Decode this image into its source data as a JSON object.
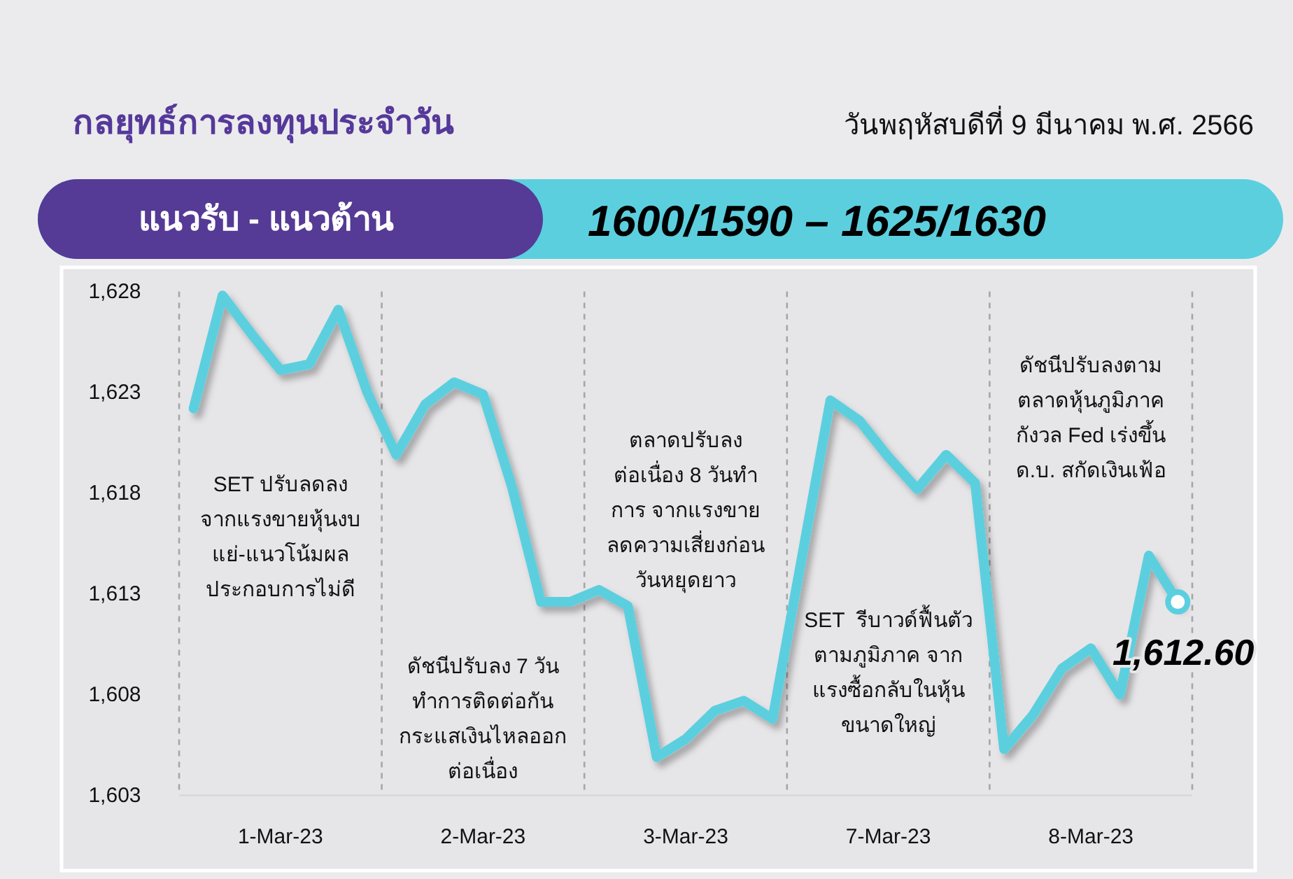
{
  "chart_data": {
    "type": "line",
    "title": "กลยุทธ์การลงทุนประจำวัน",
    "subtitle": "วันพฤหัสบดีที่ 9 มีนาคม พ.ศ. 2566",
    "categories": [
      null,
      null,
      null,
      "1-Mar-23",
      null,
      null,
      null,
      null,
      null,
      null,
      "2-Mar-23",
      null,
      null,
      null,
      null,
      null,
      null,
      "3-Mar-23",
      null,
      null,
      null,
      null,
      null,
      null,
      "7-Mar-23",
      null,
      null,
      null,
      null,
      null,
      null,
      "8-Mar-23",
      null,
      null,
      null
    ],
    "series": [
      {
        "color": "#5bcfdf",
        "values": [
          1622.2,
          1627.8,
          1625.9,
          1624.1,
          1624.4,
          1627.1,
          1623.0,
          1619.9,
          1622.4,
          1623.5,
          1622.9,
          1618.3,
          1612.6,
          1612.6,
          1613.2,
          1612.4,
          1604.9,
          1605.8,
          1607.2,
          1607.7,
          1606.8,
          1614.7,
          1622.6,
          1621.6,
          1619.8,
          1618.2,
          1619.9,
          1618.5,
          1605.3,
          1607.0,
          1609.3,
          1610.3,
          1608.0,
          1614.9,
          1612.6
        ],
        "value_labels": [
          null,
          null,
          null,
          null,
          null,
          null,
          null,
          null,
          null,
          null,
          null,
          null,
          null,
          null,
          null,
          null,
          null,
          null,
          null,
          null,
          null,
          null,
          null,
          null,
          null,
          null,
          null,
          null,
          null,
          null,
          null,
          null,
          null,
          null,
          "1,612.60"
        ]
      }
    ],
    "ylim": [
      1603,
      1628
    ],
    "yticks": [
      {
        "value": 1603,
        "label": "1,603"
      },
      {
        "value": 1608,
        "label": "1,608"
      },
      {
        "value": 1613,
        "label": "1,613"
      },
      {
        "value": 1618,
        "label": "1,618"
      },
      {
        "value": 1623,
        "label": "1,623"
      },
      {
        "value": 1628,
        "label": "1,628"
      }
    ],
    "grid": "x",
    "annotations": [
      "แนวรับ - แนวต้าน",
      "1600/1590 – 1625/1630",
      "SET ปรับลดลง\nจากแรงขายหุ้นงบ\nแย่-แนวโน้มผล\nประกอบการไม่ดี",
      "ดัชนีปรับลง 7 วัน\nทำการติดต่อกัน\nกระแสเงินไหลออก\nต่อเนื่อง",
      "ตลาดปรับลง\nต่อเนื่อง 8 วันทำ\nการ จากแรงขาย\nลดความเสี่ยงก่อน\nวันหยุดยาว",
      "SET  รีบาวด์ฟื้นตัว\nตามภูมิภาค จาก\nแรงซื้อกลับในหุ้น\nขนาดใหญ่",
      "ดัชนีปรับลงตาม\nตลาดหุ้นภูมิภาค\nกังวล Fed เร่งขึ้น\nด.บ. สกัดเงินเฟ้อ"
    ]
  }
}
